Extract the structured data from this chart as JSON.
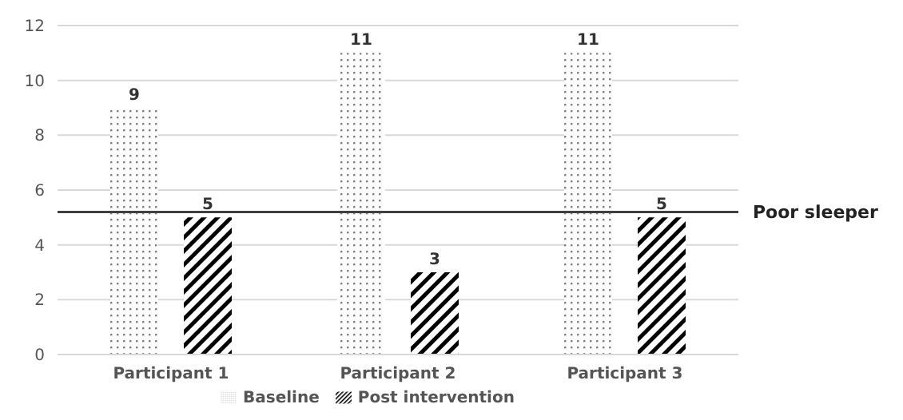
{
  "chart_data": {
    "type": "bar",
    "categories": [
      "Participant 1",
      "Participant 2",
      "Participant 3"
    ],
    "series": [
      {
        "name": "Baseline",
        "color": "#808080",
        "values": [
          9,
          11,
          11
        ]
      },
      {
        "name": "Post intervention",
        "color": "#000000",
        "values": [
          5,
          3,
          5
        ]
      }
    ],
    "ylim": [
      0,
      12
    ],
    "yticks": [
      0,
      2,
      4,
      6,
      8,
      10,
      12
    ],
    "grid": "y",
    "legend": "bottom",
    "data_labels": true,
    "ref_lines": [
      {
        "axis": "y",
        "value": 5.2,
        "label": "Poor sleeper",
        "color": "#404040"
      }
    ]
  }
}
